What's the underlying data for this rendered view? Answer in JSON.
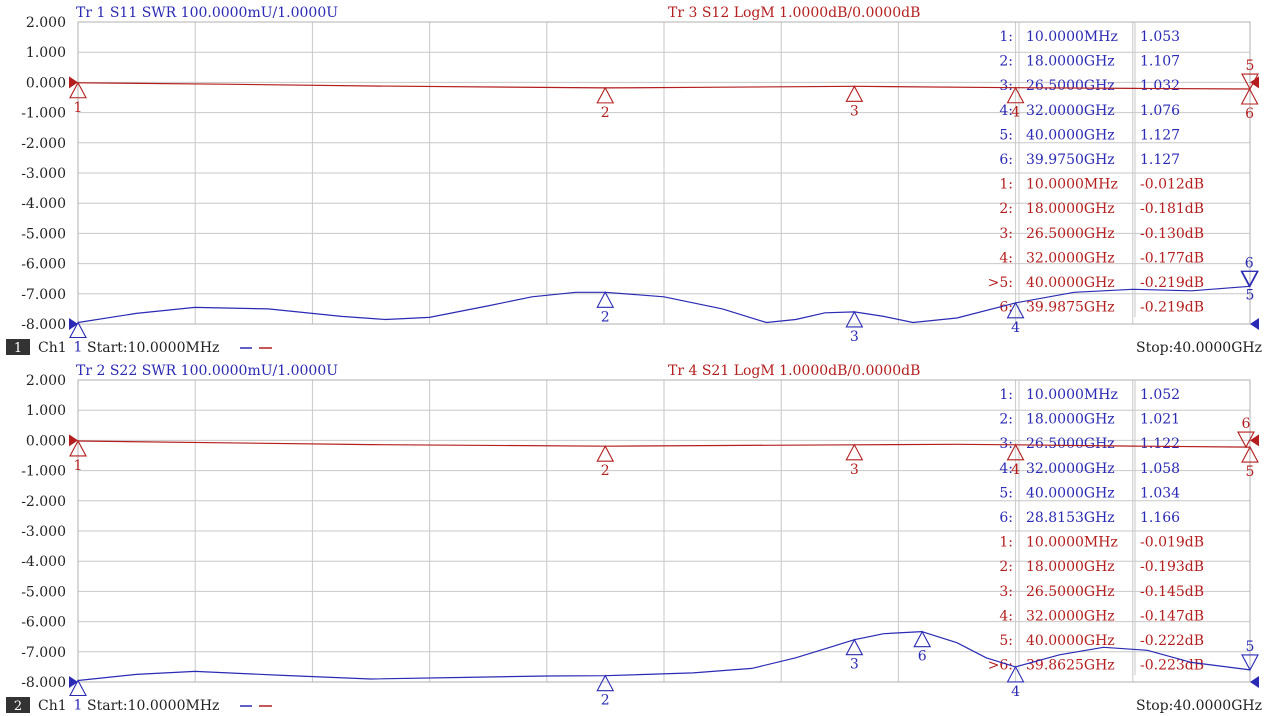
{
  "colors": {
    "trace_blue": "#2a2ab4",
    "trace_red": "#b41e1e",
    "grid": "#c8c8c8",
    "frame": "#b0b0b0",
    "badge": "#333333"
  },
  "chart_data": [
    {
      "type": "line",
      "header_left": "Tr 1  S11 SWR 100.0000mU/1.0000U",
      "header_right": "Tr 3  S12 LogM 1.0000dB/0.0000dB",
      "ylim": [
        -8,
        2
      ],
      "xlim": [
        0.01,
        40
      ],
      "grid": true,
      "yticks": [
        "2.000",
        "1.000",
        "0.000",
        "-1.000",
        "-2.000",
        "-3.000",
        "-4.000",
        "-5.000",
        "-6.000",
        "-7.000",
        "-8.000"
      ],
      "footer": {
        "channel_number": "1",
        "channel": "Ch1",
        "start": "Start:10.0000MHz",
        "stop": "Stop:40.0000GHz"
      },
      "series": [
        {
          "name": "Tr 1  S11 SWR 100.0000mU/1.0000U",
          "color": "#2a2ab4",
          "ref_value": -8,
          "x": [
            0.01,
            2,
            4,
            6.5,
            9,
            10.5,
            12,
            14,
            15.5,
            17,
            18,
            20,
            22,
            23.5,
            24.5,
            25.5,
            26.5,
            27.5,
            28.5,
            30,
            32,
            34,
            36,
            38,
            40
          ],
          "values": [
            -7.95,
            -7.65,
            -7.45,
            -7.5,
            -7.75,
            -7.85,
            -7.78,
            -7.4,
            -7.1,
            -6.95,
            -6.95,
            -7.1,
            -7.5,
            -7.95,
            -7.85,
            -7.63,
            -7.6,
            -7.75,
            -7.95,
            -7.8,
            -7.3,
            -6.95,
            -6.85,
            -6.9,
            -6.75
          ]
        },
        {
          "name": "Tr 3  S12 LogM 1.0000dB/0.0000dB",
          "color": "#b41e1e",
          "ref_value": 0,
          "x": [
            0.01,
            5,
            10,
            18,
            22,
            26.5,
            32,
            36,
            40
          ],
          "values": [
            -0.012,
            -0.06,
            -0.12,
            -0.181,
            -0.16,
            -0.13,
            -0.177,
            -0.2,
            -0.219
          ]
        }
      ],
      "markers": {
        "blue": [
          {
            "label": "1",
            "x": 0.01,
            "dir": "up",
            "num_pos": "below"
          },
          {
            "label": "2",
            "x": 18,
            "dir": "up",
            "num_pos": "below"
          },
          {
            "label": "3",
            "x": 26.5,
            "dir": "up",
            "num_pos": "below"
          },
          {
            "label": "4",
            "x": 32,
            "dir": "up",
            "num_pos": "below"
          },
          {
            "label": "5",
            "x": 40,
            "dir": "down",
            "num_pos": "below"
          },
          {
            "label": "6",
            "x": 39.975,
            "dir": "down",
            "num_pos": "above"
          }
        ],
        "red": [
          {
            "label": "1",
            "x": 0.01,
            "dir": "up",
            "num_pos": "below"
          },
          {
            "label": "2",
            "x": 18,
            "dir": "up",
            "num_pos": "below"
          },
          {
            "label": "3",
            "x": 26.5,
            "dir": "up",
            "num_pos": "below"
          },
          {
            "label": "4",
            "x": 32,
            "dir": "up",
            "num_pos": "below"
          },
          {
            "label": "5",
            "x": 40,
            "dir": "down",
            "num_pos": "above"
          },
          {
            "label": "6",
            "x": 39.9875,
            "dir": "up",
            "num_pos": "below"
          }
        ]
      },
      "readout": [
        {
          "idx": "1:",
          "freq": "10.0000MHz",
          "val": "1.053",
          "color": "blue"
        },
        {
          "idx": "2:",
          "freq": "18.0000GHz",
          "val": "1.107",
          "color": "blue"
        },
        {
          "idx": "3:",
          "freq": "26.5000GHz",
          "val": "1.032",
          "color": "blue"
        },
        {
          "idx": "4:",
          "freq": "32.0000GHz",
          "val": "1.076",
          "color": "blue"
        },
        {
          "idx": "5:",
          "freq": "40.0000GHz",
          "val": "1.127",
          "color": "blue"
        },
        {
          "idx": "6:",
          "freq": "39.9750GHz",
          "val": "1.127",
          "color": "blue"
        },
        {
          "idx": "1:",
          "freq": "10.0000MHz",
          "val": "-0.012dB",
          "color": "red"
        },
        {
          "idx": "2:",
          "freq": "18.0000GHz",
          "val": "-0.181dB",
          "color": "red"
        },
        {
          "idx": "3:",
          "freq": "26.5000GHz",
          "val": "-0.130dB",
          "color": "red"
        },
        {
          "idx": "4:",
          "freq": "32.0000GHz",
          "val": "-0.177dB",
          "color": "red"
        },
        {
          "idx": ">5:",
          "freq": "40.0000GHz",
          "val": "-0.219dB",
          "color": "red"
        },
        {
          "idx": "6:",
          "freq": "39.9875GHz",
          "val": "-0.219dB",
          "color": "red"
        }
      ]
    },
    {
      "type": "line",
      "header_left": "Tr 2  S22 SWR 100.0000mU/1.0000U",
      "header_right": "Tr 4  S21 LogM 1.0000dB/0.0000dB",
      "ylim": [
        -8,
        2
      ],
      "xlim": [
        0.01,
        40
      ],
      "grid": true,
      "yticks": [
        "2.000",
        "1.000",
        "0.000",
        "-1.000",
        "-2.000",
        "-3.000",
        "-4.000",
        "-5.000",
        "-6.000",
        "-7.000",
        "-8.000"
      ],
      "footer": {
        "channel_number": "2",
        "channel": "Ch1",
        "start": "Start:10.0000MHz",
        "stop": "Stop:40.0000GHz"
      },
      "series": [
        {
          "name": "Tr 2  S22 SWR 100.0000mU/1.0000U",
          "color": "#2a2ab4",
          "ref_value": -8,
          "x": [
            0.01,
            2,
            4,
            7,
            10,
            13,
            16,
            18,
            21,
            23,
            24.5,
            25.5,
            26.5,
            27.5,
            28.8,
            30,
            31,
            32,
            33.5,
            35,
            36.5,
            38,
            40
          ],
          "values": [
            -7.95,
            -7.75,
            -7.65,
            -7.78,
            -7.9,
            -7.85,
            -7.8,
            -7.79,
            -7.7,
            -7.55,
            -7.2,
            -6.9,
            -6.6,
            -6.4,
            -6.33,
            -6.7,
            -7.2,
            -7.5,
            -7.1,
            -6.85,
            -6.95,
            -7.35,
            -7.6
          ]
        },
        {
          "name": "Tr 4  S21 LogM 1.0000dB/0.0000dB",
          "color": "#b41e1e",
          "ref_value": 0,
          "x": [
            0.01,
            5,
            10,
            18,
            22,
            26.5,
            30,
            32,
            36,
            40
          ],
          "values": [
            -0.019,
            -0.08,
            -0.14,
            -0.193,
            -0.17,
            -0.145,
            -0.13,
            -0.147,
            -0.19,
            -0.222
          ]
        }
      ],
      "markers": {
        "blue": [
          {
            "label": "1",
            "x": 0.01,
            "dir": "up",
            "num_pos": "below"
          },
          {
            "label": "2",
            "x": 18,
            "dir": "up",
            "num_pos": "below"
          },
          {
            "label": "3",
            "x": 26.5,
            "dir": "up",
            "num_pos": "below"
          },
          {
            "label": "4",
            "x": 32,
            "dir": "up",
            "num_pos": "below"
          },
          {
            "label": "5",
            "x": 40,
            "dir": "down",
            "num_pos": "above"
          },
          {
            "label": "6",
            "x": 28.8153,
            "dir": "up",
            "num_pos": "below"
          }
        ],
        "red": [
          {
            "label": "1",
            "x": 0.01,
            "dir": "up",
            "num_pos": "below"
          },
          {
            "label": "2",
            "x": 18,
            "dir": "up",
            "num_pos": "below"
          },
          {
            "label": "3",
            "x": 26.5,
            "dir": "up",
            "num_pos": "below"
          },
          {
            "label": "4",
            "x": 32,
            "dir": "up",
            "num_pos": "below"
          },
          {
            "label": "5",
            "x": 40,
            "dir": "up",
            "num_pos": "below"
          },
          {
            "label": "6",
            "x": 39.8625,
            "dir": "down",
            "num_pos": "above"
          }
        ]
      },
      "readout": [
        {
          "idx": "1:",
          "freq": "10.0000MHz",
          "val": "1.052",
          "color": "blue"
        },
        {
          "idx": "2:",
          "freq": "18.0000GHz",
          "val": "1.021",
          "color": "blue"
        },
        {
          "idx": "3:",
          "freq": "26.5000GHz",
          "val": "1.122",
          "color": "blue"
        },
        {
          "idx": "4:",
          "freq": "32.0000GHz",
          "val": "1.058",
          "color": "blue"
        },
        {
          "idx": "5:",
          "freq": "40.0000GHz",
          "val": "1.034",
          "color": "blue"
        },
        {
          "idx": "6:",
          "freq": "28.8153GHz",
          "val": "1.166",
          "color": "blue"
        },
        {
          "idx": "1:",
          "freq": "10.0000MHz",
          "val": "-0.019dB",
          "color": "red"
        },
        {
          "idx": "2:",
          "freq": "18.0000GHz",
          "val": "-0.193dB",
          "color": "red"
        },
        {
          "idx": "3:",
          "freq": "26.5000GHz",
          "val": "-0.145dB",
          "color": "red"
        },
        {
          "idx": "4:",
          "freq": "32.0000GHz",
          "val": "-0.147dB",
          "color": "red"
        },
        {
          "idx": "5:",
          "freq": "40.0000GHz",
          "val": "-0.222dB",
          "color": "red"
        },
        {
          "idx": ">6:",
          "freq": "39.8625GHz",
          "val": "-0.223dB",
          "color": "red"
        }
      ]
    }
  ]
}
